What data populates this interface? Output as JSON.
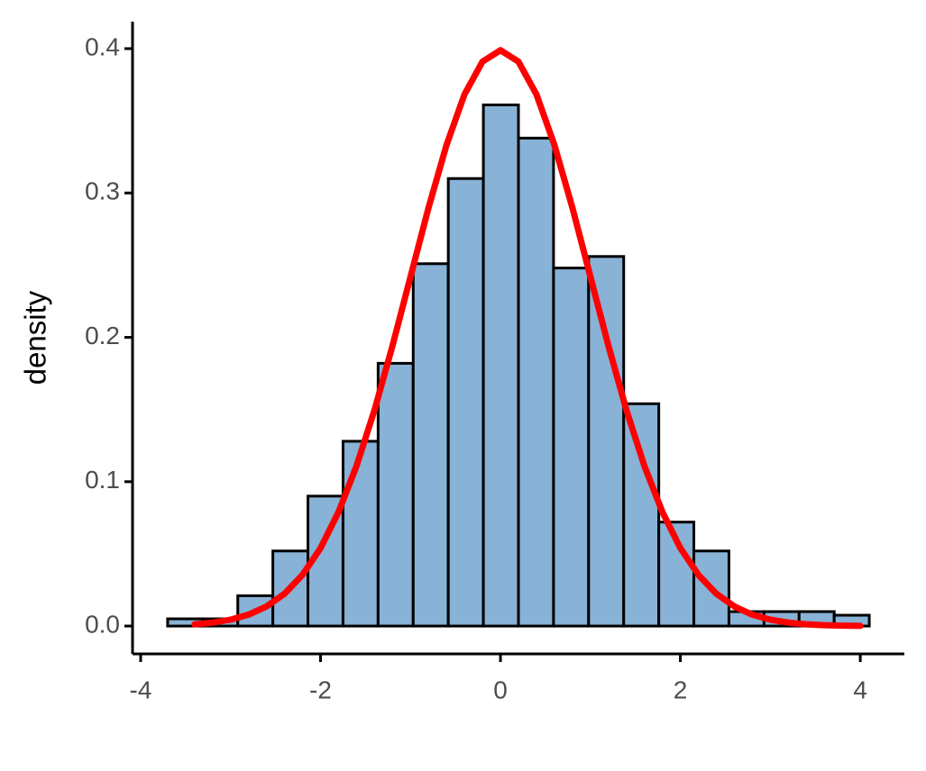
{
  "chart_data": {
    "type": "histogram",
    "ylabel": "density",
    "bins": [
      -3.7,
      -3.31,
      -2.92,
      -2.53,
      -2.14,
      -1.75,
      -1.36,
      -0.97,
      -0.58,
      -0.19,
      0.2,
      0.59,
      0.98,
      1.37,
      1.76,
      2.15,
      2.54,
      2.93,
      3.32,
      3.71,
      4.1
    ],
    "values": [
      0.005,
      0.005,
      0.021,
      0.052,
      0.09,
      0.128,
      0.182,
      0.251,
      0.31,
      0.361,
      0.338,
      0.248,
      0.256,
      0.154,
      0.072,
      0.052,
      0.01,
      0.01,
      0.01,
      0.0075
    ],
    "color": "#88b2d6",
    "edgecolor": "#000000",
    "overlay": {
      "type": "line",
      "color": "#ff0000",
      "x": [
        -3.4,
        -3.2,
        -3.0,
        -2.8,
        -2.6,
        -2.4,
        -2.2,
        -2.0,
        -1.8,
        -1.6,
        -1.4,
        -1.2,
        -1.0,
        -0.8,
        -0.6,
        -0.4,
        -0.2,
        0,
        0.2,
        0.4,
        0.6,
        0.8,
        1.0,
        1.2,
        1.4,
        1.6,
        1.8,
        2.0,
        2.2,
        2.4,
        2.6,
        2.8,
        3.0,
        3.2,
        3.4,
        3.6,
        3.8,
        4.0
      ],
      "values": [
        0.0012,
        0.0024,
        0.0044,
        0.0079,
        0.0136,
        0.0224,
        0.0355,
        0.054,
        0.079,
        0.1109,
        0.1497,
        0.1942,
        0.242,
        0.2897,
        0.3332,
        0.3683,
        0.391,
        0.3989,
        0.391,
        0.3683,
        0.3332,
        0.2897,
        0.242,
        0.1942,
        0.1497,
        0.1109,
        0.079,
        0.054,
        0.0355,
        0.0224,
        0.0136,
        0.0079,
        0.0044,
        0.0024,
        0.0012,
        0.0006,
        0.0003,
        0.0001
      ]
    },
    "xlim": [
      -4.09,
      4.49
    ],
    "ylim": [
      -0.0193,
      0.4187
    ],
    "xticks": [
      -4,
      -2,
      0,
      2,
      4
    ],
    "yticks": [
      {
        "value": 0,
        "label": "0.0"
      },
      0.1,
      0.2,
      0.3,
      0.4
    ],
    "grid": false
  }
}
